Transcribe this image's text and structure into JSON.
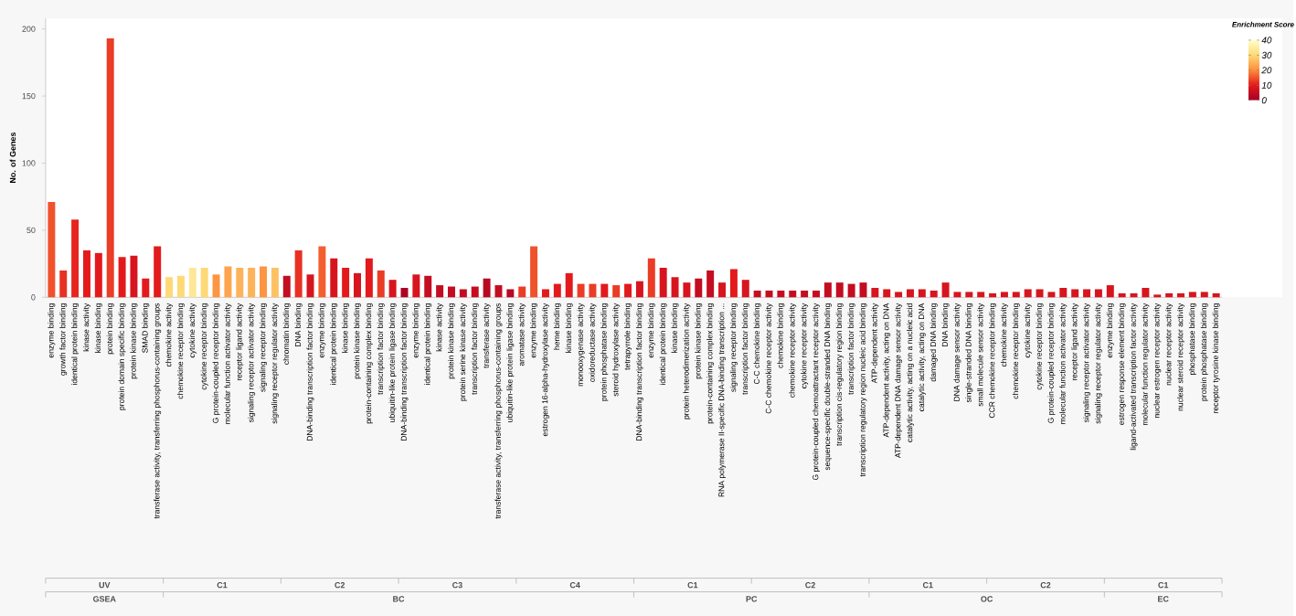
{
  "chart_data": {
    "type": "bar",
    "ylabel": "No. of Genes",
    "categories": [
      "enzyme binding",
      "growth factor binding",
      "identical protein binding",
      "kinase activity",
      "kinase binding",
      "protein binding",
      "protein domain specific binding",
      "protein kinase binding",
      "SMAD binding",
      "transferase activity, transferring phosphorus-containing groups",
      "chemokine activity",
      "chemokine receptor binding",
      "cytokine activity",
      "cytokine receptor binding",
      "G protein-coupled receptor binding",
      "molecular function activator activity",
      "receptor ligand activity",
      "signaling receptor activator activity",
      "signaling receptor binding",
      "signaling receptor regulator activity",
      "chromatin binding",
      "DNA binding",
      "DNA-binding transcription factor binding",
      "enzyme binding",
      "identical protein binding",
      "kinase binding",
      "protein kinase binding",
      "protein-containing complex binding",
      "transcription factor binding",
      "ubiquitin-like protein ligase binding",
      "DNA-binding transcription factor binding",
      "enzyme binding",
      "identical protein binding",
      "kinase activity",
      "protein kinase binding",
      "protein serine kinase activity",
      "transcription factor binding",
      "transferase activity",
      "transferase activity, transferring phosphorus-containing groups",
      "ubiquitin-like protein ligase binding",
      "aromatase activity",
      "enzyme binding",
      "estrogen 16-alpha-hydroxylase activity",
      "heme binding",
      "kinase binding",
      "monooxygenase activity",
      "oxidoreductase activity",
      "protein phosphatase binding",
      "steroid hydroxylase activity",
      "tetrapyrrole binding",
      "DNA-binding transcription factor binding",
      "enzyme binding",
      "identical protein binding",
      "kinase binding",
      "protein heterodimerization activity",
      "protein kinase binding",
      "protein-containing complex binding",
      "RNA polymerase II-specific DNA-binding transcription ...",
      "signaling receptor binding",
      "transcription factor binding",
      "C-C chemokine binding",
      "C-C chemokine receptor activity",
      "chemokine binding",
      "chemokine receptor activity",
      "cytokine receptor activity",
      "G protein-coupled chemoattractant receptor activity",
      "sequence-specific double-stranded DNA binding",
      "transcription cis-regulatory region binding",
      "transcription factor binding",
      "transcription regulatory region nucleic acid binding",
      "ATP-dependent activity",
      "ATP-dependent activity, acting on DNA",
      "ATP-dependent DNA damage sensor activity",
      "catalytic activity, acting on a nucleic acid",
      "catalytic activity, acting on DNA",
      "damaged DNA binding",
      "DNA binding",
      "DNA damage sensor activity",
      "single-stranded DNA binding",
      "small molecule sensor activity",
      "CCR chemokine receptor binding",
      "chemokine activity",
      "chemokine receptor binding",
      "cytokine activity",
      "cytokine receptor binding",
      "G protein-coupled receptor binding",
      "molecular function activator activity",
      "receptor ligand activity",
      "signaling receptor activator activity",
      "signaling receptor regulator activity",
      "enzyme binding",
      "estrogen response element binding",
      "ligand-activated transcription factor activity",
      "molecular function regulator activity",
      "nuclear estrogen receptor activity",
      "nuclear receptor activity",
      "nuclear steroid receptor activity",
      "phosphatase binding",
      "protein phosphatase binding",
      "receptor tyrosine kinase binding"
    ],
    "values": [
      71,
      20,
      58,
      35,
      33,
      193,
      30,
      31,
      14,
      38,
      15,
      16,
      22,
      22,
      17,
      23,
      22,
      22,
      23,
      22,
      16,
      35,
      17,
      38,
      29,
      22,
      18,
      29,
      20,
      13,
      7,
      17,
      16,
      9,
      8,
      6,
      8,
      14,
      9,
      6,
      8,
      38,
      6,
      10,
      18,
      10,
      10,
      10,
      9,
      10,
      12,
      29,
      22,
      15,
      11,
      14,
      20,
      11,
      21,
      13,
      5,
      5,
      5,
      5,
      5,
      5,
      11,
      11,
      10,
      11,
      7,
      6,
      4,
      6,
      6,
      5,
      11,
      4,
      4,
      4,
      3,
      4,
      4,
      6,
      6,
      4,
      7,
      6,
      6,
      6,
      9,
      3,
      3,
      7,
      2,
      3,
      3,
      4,
      4,
      3
    ],
    "cvalues": [
      15,
      12,
      11,
      10,
      10,
      13,
      10,
      8,
      10,
      10,
      30,
      30,
      34,
      30,
      21,
      23,
      25,
      25,
      21,
      27,
      5,
      12,
      8,
      16,
      8,
      10,
      8,
      10,
      13,
      8,
      1,
      8,
      5,
      5,
      5,
      5,
      5,
      3,
      5,
      3,
      13,
      15,
      10,
      10,
      10,
      13,
      13,
      10,
      13,
      10,
      8,
      13,
      8,
      8,
      8,
      5,
      5,
      8,
      10,
      8,
      5,
      5,
      5,
      5,
      5,
      5,
      5,
      5,
      5,
      5,
      8,
      8,
      8,
      8,
      8,
      8,
      8,
      8,
      8,
      8,
      8,
      8,
      8,
      8,
      8,
      8,
      8,
      8,
      8,
      8,
      8,
      8,
      8,
      8,
      8,
      8,
      8,
      8,
      8,
      8
    ],
    "ylim": [
      0,
      208
    ],
    "yticks": [
      0,
      50,
      100,
      150,
      200
    ],
    "clabel": "Enrichment Score",
    "clim": [
      0,
      40
    ],
    "cticks": [
      0,
      10,
      20,
      30,
      40
    ],
    "annotations": [
      "UV",
      "C1",
      "C2",
      "C3",
      "C4",
      "C1",
      "C2",
      "C1",
      "C2",
      "C1",
      "GSEA",
      "BC",
      "PC",
      "OC",
      "EC"
    ]
  }
}
